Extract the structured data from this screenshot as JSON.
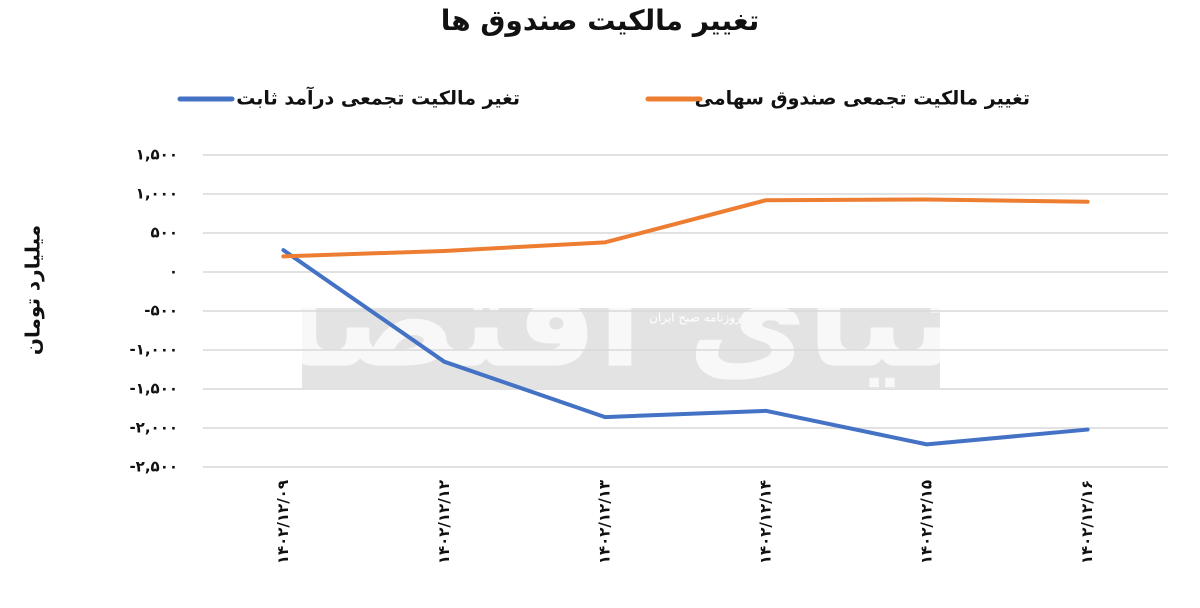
{
  "chart_data": {
    "type": "line",
    "title": "تغییر مالکیت صندوق ها",
    "y_label": "میلیارد تومان",
    "watermark": "دنیای اقتصاد",
    "watermark_subtitle": "روزنامه صبح ایران",
    "categories": [
      "۱۴۰۲/۱۲/۰۹",
      "۱۴۰۲/۱۲/۱۲",
      "۱۴۰۲/۱۲/۱۳",
      "۱۴۰۲/۱۲/۱۴",
      "۱۴۰۲/۱۲/۱۵",
      "۱۴۰۲/۱۲/۱۶"
    ],
    "series": [
      {
        "name": "تغیر مالکیت تجمعی درآمد ثابت",
        "color": "#4472c4",
        "values": [
          280,
          -1150,
          -1860,
          -1780,
          -2210,
          -2020
        ]
      },
      {
        "name": "تغییر مالکیت تجمعی صندوق سهامی",
        "color": "#ed7d31",
        "values": [
          200,
          270,
          380,
          920,
          930,
          900
        ]
      }
    ],
    "ylim": [
      -2500,
      1500
    ],
    "yticks": [
      {
        "value": -2500,
        "label": "-۲,۵۰۰"
      },
      {
        "value": -2000,
        "label": "-۲,۰۰۰"
      },
      {
        "value": -1500,
        "label": "-۱,۵۰۰"
      },
      {
        "value": -1000,
        "label": "-۱,۰۰۰"
      },
      {
        "value": -500,
        "label": "-۵۰۰"
      },
      {
        "value": 0,
        "label": "۰"
      },
      {
        "value": 500,
        "label": "۵۰۰"
      },
      {
        "value": 1000,
        "label": "۱,۰۰۰"
      },
      {
        "value": 1500,
        "label": "۱,۵۰۰"
      }
    ],
    "grid": true,
    "legend": "top"
  }
}
